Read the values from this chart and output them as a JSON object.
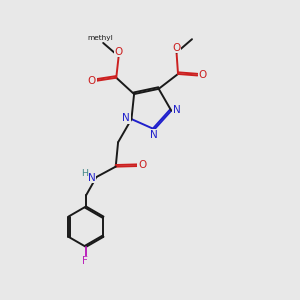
{
  "bg_color": "#e8e8e8",
  "bond_color": "#1a1a1a",
  "n_color": "#2020cc",
  "o_color": "#cc2020",
  "f_color": "#bb22bb",
  "nh_color": "#2020cc",
  "nh_h_color": "#448888",
  "lw": 1.4,
  "fs": 7.5,
  "sf": 6.8,
  "figsize": [
    3.0,
    3.0
  ],
  "dpi": 100,
  "xlim": [
    0,
    10
  ],
  "ylim": [
    0,
    10
  ]
}
